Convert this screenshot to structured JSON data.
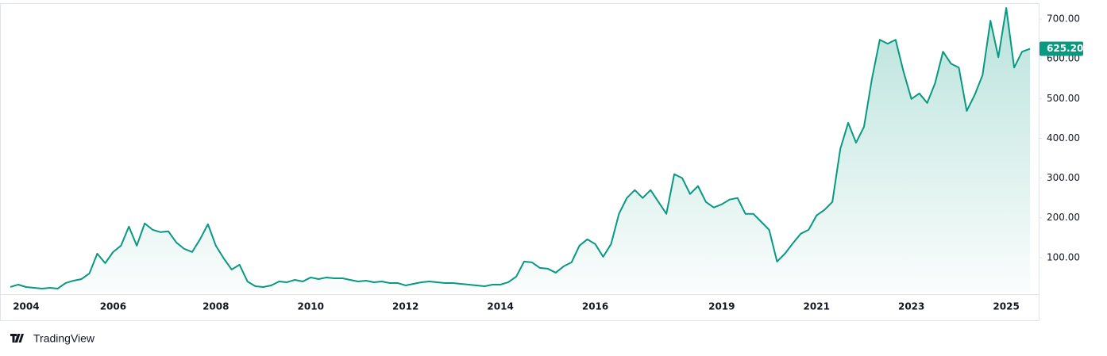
{
  "chart_data": {
    "type": "area",
    "color": "#089981",
    "brand": "TradingView",
    "ylim": [
      14,
      738
    ],
    "yticks": [
      {
        "value": 100,
        "label": "100.00"
      },
      {
        "value": 200,
        "label": "200.00"
      },
      {
        "value": 300,
        "label": "300.00"
      },
      {
        "value": 400,
        "label": "400.00"
      },
      {
        "value": 500,
        "label": "500.00"
      },
      {
        "value": 600,
        "label": "600.00"
      },
      {
        "value": 700,
        "label": "700.00"
      }
    ],
    "categories": [
      null,
      null,
      "2004",
      null,
      null,
      null,
      null,
      null,
      null,
      null,
      null,
      null,
      null,
      "2006",
      null,
      null,
      null,
      null,
      null,
      null,
      null,
      null,
      null,
      null,
      null,
      null,
      "2008",
      null,
      null,
      null,
      null,
      null,
      null,
      null,
      null,
      null,
      null,
      null,
      "2010",
      null,
      null,
      null,
      null,
      null,
      null,
      null,
      null,
      null,
      null,
      null,
      "2012",
      null,
      null,
      null,
      null,
      null,
      null,
      null,
      null,
      null,
      null,
      null,
      "2014",
      null,
      null,
      null,
      null,
      null,
      null,
      null,
      null,
      null,
      null,
      null,
      "2016",
      null,
      null,
      null,
      null,
      null,
      null,
      null,
      null,
      null,
      null,
      null,
      null,
      null,
      null,
      null,
      "2019",
      null,
      null,
      null,
      null,
      null,
      null,
      null,
      null,
      null,
      null,
      null,
      "2021",
      null,
      null,
      null,
      null,
      null,
      null,
      null,
      null,
      null,
      null,
      null,
      "2023",
      null,
      null,
      null,
      null,
      null,
      null,
      null,
      null,
      null,
      null,
      null,
      "2025",
      null,
      null,
      null
    ],
    "values": [
      26,
      32,
      26,
      24,
      22,
      24,
      22,
      36,
      42,
      46,
      60,
      110,
      86,
      114,
      130,
      178,
      130,
      186,
      170,
      164,
      166,
      138,
      122,
      114,
      146,
      184,
      130,
      98,
      70,
      82,
      40,
      28,
      26,
      30,
      40,
      38,
      44,
      40,
      50,
      46,
      50,
      48,
      48,
      44,
      40,
      42,
      38,
      40,
      36,
      36,
      30,
      34,
      38,
      40,
      38,
      36,
      36,
      34,
      32,
      30,
      28,
      32,
      32,
      38,
      52,
      90,
      88,
      74,
      72,
      62,
      78,
      88,
      130,
      146,
      134,
      102,
      134,
      210,
      250,
      270,
      250,
      270,
      240,
      210,
      310,
      300,
      260,
      280,
      240,
      226,
      234,
      246,
      250,
      210,
      210,
      190,
      170,
      90,
      110,
      136,
      160,
      170,
      206,
      220,
      240,
      373,
      439,
      389,
      429,
      549,
      648,
      638,
      648,
      568,
      499,
      513,
      489,
      539,
      618,
      588,
      578,
      469,
      509,
      559,
      696,
      604,
      728,
      578,
      618,
      625.2
    ],
    "value_labels": [
      null,
      null,
      null,
      null,
      null,
      null,
      null,
      null,
      null,
      null,
      null,
      null,
      null,
      null,
      null,
      null,
      null,
      null,
      null,
      null,
      null,
      null,
      null,
      null,
      null,
      null,
      null,
      null,
      null,
      null,
      null,
      null,
      null,
      null,
      null,
      null,
      null,
      null,
      null,
      null,
      null,
      null,
      null,
      null,
      null,
      null,
      null,
      null,
      null,
      null,
      null,
      null,
      null,
      null,
      null,
      null,
      null,
      null,
      null,
      null,
      null,
      null,
      null,
      null,
      null,
      null,
      null,
      null,
      null,
      null,
      null,
      null,
      null,
      null,
      null,
      null,
      null,
      null,
      null,
      null,
      null,
      null,
      null,
      null,
      null,
      null,
      null,
      null,
      null,
      null,
      null,
      null,
      null,
      null,
      null,
      null,
      null,
      null,
      null,
      null,
      null,
      null,
      null,
      null,
      null,
      null,
      null,
      null,
      null,
      null,
      null,
      null,
      null,
      null,
      null,
      null,
      null,
      null,
      null,
      null,
      null,
      null,
      null,
      null,
      null,
      null,
      null,
      null,
      null,
      "625.20"
    ]
  }
}
